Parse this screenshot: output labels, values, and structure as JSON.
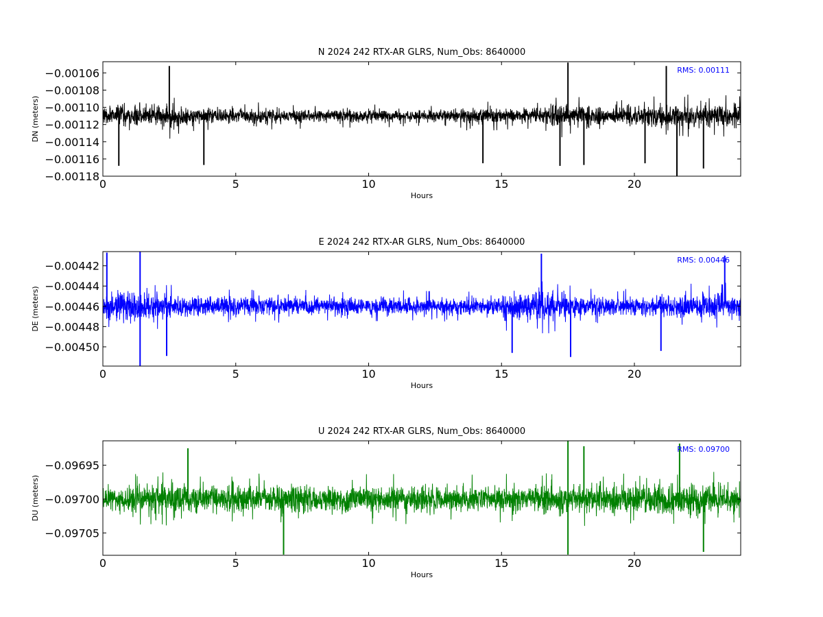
{
  "chart_data": [
    {
      "type": "line",
      "title": "N 2024 242 RTX-AR  GLRS, Num_Obs: 8640000",
      "xlabel": "Hours",
      "ylabel": "DN (meters)",
      "xlim": [
        0,
        24
      ],
      "ylim": [
        -0.00118,
        -0.001047
      ],
      "xticks": [
        0,
        5,
        10,
        15,
        20
      ],
      "xtick_labels": [
        "0",
        "5",
        "10",
        "15",
        "20"
      ],
      "yticks": [
        -0.00118,
        -0.00116,
        -0.00114,
        -0.00112,
        -0.0011,
        -0.00108,
        -0.00106
      ],
      "ytick_labels": [
        "−0.00118",
        "−0.00116",
        "−0.00114",
        "−0.00112",
        "−0.00110",
        "−0.00108",
        "−0.00106"
      ],
      "rms_label": "RMS:  0.00111",
      "color": "#000000",
      "series": {
        "center": -0.00111,
        "spread_profile": [
          [
            0,
            1.8e-05
          ],
          [
            2.5,
            2e-05
          ],
          [
            3.5,
            1.3e-05
          ],
          [
            10,
            1e-05
          ],
          [
            13,
            9e-06
          ],
          [
            14,
            1.4e-05
          ],
          [
            15,
            1.2e-05
          ],
          [
            16.5,
            1.2e-05
          ],
          [
            17,
            1.9e-05
          ],
          [
            18,
            1.8e-05
          ],
          [
            19,
            1.2e-05
          ],
          [
            20,
            1.8e-05
          ],
          [
            22,
            1.9e-05
          ],
          [
            24,
            1.8e-05
          ]
        ],
        "spikes": [
          [
            17.5,
            -0.001048
          ],
          [
            21.6,
            -0.001181
          ],
          [
            22.6,
            -0.001171
          ],
          [
            0.6,
            -0.001168
          ],
          [
            14.3,
            -0.001165
          ],
          [
            17.2,
            -0.001168
          ],
          [
            3.8,
            -0.001167
          ],
          [
            20.4,
            -0.001165
          ],
          [
            18.1,
            -0.001167
          ],
          [
            2.5,
            -0.001052
          ],
          [
            21.2,
            -0.001052
          ]
        ]
      }
    },
    {
      "type": "line",
      "title": "E 2024 242 RTX-AR  GLRS, Num_Obs: 8640000",
      "xlabel": "Hours",
      "ylabel": "DE (meters)",
      "xlim": [
        0,
        24
      ],
      "ylim": [
        -0.004519,
        -0.004406
      ],
      "xticks": [
        0,
        5,
        10,
        15,
        20
      ],
      "xtick_labels": [
        "0",
        "5",
        "10",
        "15",
        "20"
      ],
      "yticks": [
        -0.0045,
        -0.00448,
        -0.00446,
        -0.00444,
        -0.00442
      ],
      "ytick_labels": [
        "−0.00450",
        "−0.00448",
        "−0.00446",
        "−0.00444",
        "−0.00442"
      ],
      "rms_label": "RMS:  0.00446",
      "color": "#0000ff",
      "series": {
        "center": -0.00446,
        "spread_profile": [
          [
            0,
            1.9e-05
          ],
          [
            1.5,
            2.1e-05
          ],
          [
            2.5,
            1.6e-05
          ],
          [
            4,
            1.3e-05
          ],
          [
            10,
            1.2e-05
          ],
          [
            14.5,
            1.1e-05
          ],
          [
            15.2,
            1.9e-05
          ],
          [
            17,
            2e-05
          ],
          [
            18.5,
            1.3e-05
          ],
          [
            21,
            1.3e-05
          ],
          [
            22.5,
            1.8e-05
          ],
          [
            24,
            1.8e-05
          ]
        ],
        "spikes": [
          [
            0.15,
            -0.004407
          ],
          [
            1.4,
            -0.004406
          ],
          [
            1.4,
            -0.004519
          ],
          [
            2.4,
            -0.004509
          ],
          [
            16.5,
            -0.004408
          ],
          [
            17.6,
            -0.00451
          ],
          [
            23.4,
            -0.00441
          ],
          [
            21.0,
            -0.004504
          ],
          [
            15.4,
            -0.004506
          ]
        ]
      }
    },
    {
      "type": "line",
      "title": "U 2024 242 RTX-AR  GLRS, Num_Obs: 8640000",
      "xlabel": "Hours",
      "ylabel": "DU (meters)",
      "xlim": [
        0,
        24
      ],
      "ylim": [
        -0.097083,
        -0.096914
      ],
      "xticks": [
        0,
        5,
        10,
        15,
        20
      ],
      "xtick_labels": [
        "0",
        "5",
        "10",
        "15",
        "20"
      ],
      "yticks": [
        -0.09705,
        -0.097,
        -0.09695
      ],
      "ytick_labels": [
        "−0.09705",
        "−0.09700",
        "−0.09695"
      ],
      "rms_label": "RMS:  0.09700",
      "color": "#008000",
      "series": {
        "center": -0.097,
        "spread_profile": [
          [
            0,
            2.6e-05
          ],
          [
            3,
            3.2e-05
          ],
          [
            4,
            3e-05
          ],
          [
            10,
            2.8e-05
          ],
          [
            14,
            2.7e-05
          ],
          [
            17.5,
            3.2e-05
          ],
          [
            20,
            2.7e-05
          ],
          [
            22.5,
            3.3e-05
          ],
          [
            24,
            2.8e-05
          ]
        ],
        "spikes": [
          [
            17.5,
            -0.096914
          ],
          [
            3.2,
            -0.096925
          ],
          [
            6.8,
            -0.097082
          ],
          [
            17.5,
            -0.097082
          ],
          [
            22.6,
            -0.097078
          ],
          [
            18.1,
            -0.096922
          ],
          [
            21.7,
            -0.096918
          ]
        ]
      }
    }
  ]
}
